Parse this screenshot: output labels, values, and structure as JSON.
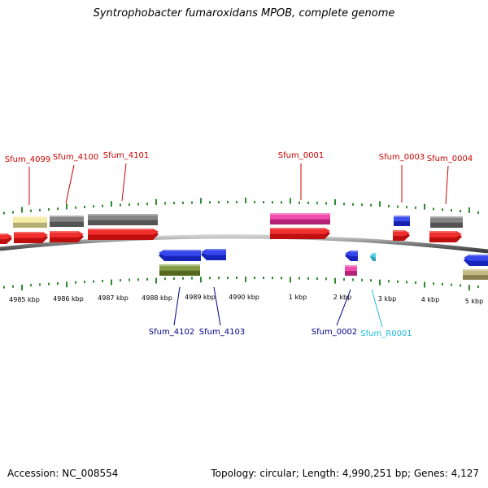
{
  "title": "Syntrophobacter fumaroxidans MPOB, complete genome",
  "footer": {
    "accession": "Accession: NC_008554",
    "topology": "Topology: circular; Length: 4,990,251 bp; Genes: 4,127"
  },
  "colors": {
    "red": "#ee1111",
    "gray": "#707070",
    "yellow": "#f3e99a",
    "magenta": "#ee2ea0",
    "blue": "#1a2ee8",
    "olive": "#6e8a25",
    "tan": "#b8ab6a",
    "cyan": "#33c8e8",
    "tick": "#2e8b2e",
    "label_red": "#cc0000",
    "label_blue": "#00008b",
    "label_cyan": "#20b8e0"
  },
  "ticks": [
    {
      "label": "4985 kbp"
    },
    {
      "label": "4986 kbp"
    },
    {
      "label": "4987 kbp"
    },
    {
      "label": "4988 kbp"
    },
    {
      "label": "4989 kbp"
    },
    {
      "label": "4990 kbp"
    },
    {
      "label": "1 kbp"
    },
    {
      "label": "2 kbp"
    },
    {
      "label": "3 kbp"
    },
    {
      "label": "4 kbp"
    },
    {
      "label": "5 kbp"
    }
  ],
  "labels": [
    {
      "name": "Sfum_4099",
      "color": "label_red"
    },
    {
      "name": "Sfum_4100",
      "color": "label_red"
    },
    {
      "name": "Sfum_4101",
      "color": "label_red"
    },
    {
      "name": "Sfum_0001",
      "color": "label_red"
    },
    {
      "name": "Sfum_0003",
      "color": "label_red"
    },
    {
      "name": "Sfum_0004",
      "color": "label_red"
    },
    {
      "name": "Sfum_4102",
      "color": "label_blue"
    },
    {
      "name": "Sfum_4103",
      "color": "label_blue"
    },
    {
      "name": "Sfum_0002",
      "color": "label_blue"
    },
    {
      "name": "Sfum_R0001",
      "color": "label_cyan"
    }
  ]
}
